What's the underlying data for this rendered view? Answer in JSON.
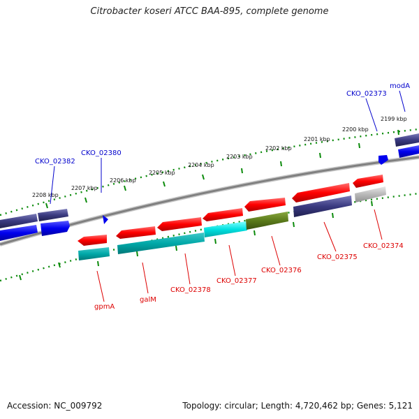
{
  "title": "Citrobacter koseri ATCC BAA-895, complete genome",
  "footer": {
    "accession": "Accession: NC_009792",
    "stats": "Topology: circular; Length: 4,720,462 bp; Genes: 5,121"
  },
  "colors": {
    "forward_cds": "#ff0000",
    "reverse_cds_blue": "#0000ee",
    "reverse_cds_navy": "#3a3a80",
    "rna_cyan": "#00d8d8",
    "olive": "#5a7a1a",
    "grey_gene": "#b8b8b8",
    "backbone": "#808080",
    "tick_dots": "#0a8a0a",
    "label_forward": "#0000cc",
    "label_reverse": "#dd0000"
  },
  "kbp_ticks": [
    "2208 kbp",
    "2207 kbp",
    "2206 kbp",
    "2205 kbp",
    "2204 kbp",
    "2203 kbp",
    "2202 kbp",
    "2201 kbp",
    "2200 kbp",
    "2199 kbp"
  ],
  "labels": {
    "outer": [
      "CKO_02382",
      "CKO_02380",
      "CKO_02373",
      "modA"
    ],
    "inner": [
      "gpmA",
      "galM",
      "CKO_02378",
      "CKO_02377",
      "CKO_02376",
      "CKO_02375",
      "CKO_02374"
    ]
  }
}
